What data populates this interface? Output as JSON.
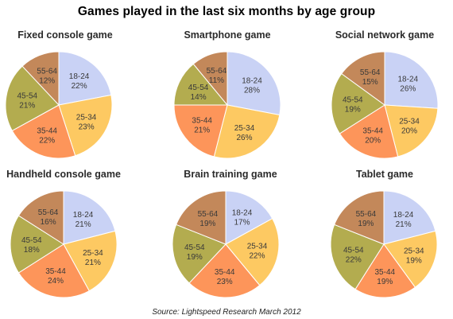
{
  "title": "Games played in the last six months by age group",
  "source": "Source: Lightspeed Research March 2012",
  "colors": {
    "18-24": "#c9d2f5",
    "25-34": "#fdc962",
    "35-44": "#fd955a",
    "45-54": "#b3ac4f",
    "55-64": "#c3885a",
    "outline": "#ffffff"
  },
  "chart_data": [
    {
      "type": "pie",
      "title": "Fixed console game",
      "categories": [
        "18-24",
        "25-34",
        "35-44",
        "45-54",
        "55-64"
      ],
      "values": [
        22,
        23,
        22,
        21,
        12
      ],
      "labels": [
        "22%",
        "23%",
        "22%",
        "21%",
        "12%"
      ]
    },
    {
      "type": "pie",
      "title": "Smartphone game",
      "categories": [
        "18-24",
        "25-34",
        "35-44",
        "45-54",
        "55-64"
      ],
      "values": [
        28,
        26,
        21,
        14,
        11
      ],
      "labels": [
        "28%",
        "26%",
        "21%",
        "14%",
        "11%"
      ]
    },
    {
      "type": "pie",
      "title": "Social network game",
      "categories": [
        "18-24",
        "25-34",
        "35-44",
        "45-54",
        "55-64"
      ],
      "values": [
        26,
        20,
        20,
        19,
        15
      ],
      "labels": [
        "26%",
        "20%",
        "20%",
        "19%",
        "15%"
      ]
    },
    {
      "type": "pie",
      "title": "Handheld console game",
      "categories": [
        "18-24",
        "25-34",
        "35-44",
        "45-54",
        "55-64"
      ],
      "values": [
        21,
        21,
        24,
        18,
        16
      ],
      "labels": [
        "21%",
        "21%",
        "24%",
        "18%",
        "16%"
      ]
    },
    {
      "type": "pie",
      "title": "Brain training game",
      "categories": [
        "18-24",
        "25-34",
        "35-44",
        "45-54",
        "55-64"
      ],
      "values": [
        17,
        22,
        23,
        19,
        19
      ],
      "labels": [
        "17%",
        "22%",
        "23%",
        "19%",
        "19%"
      ]
    },
    {
      "type": "pie",
      "title": "Tablet game",
      "categories": [
        "18-24",
        "25-34",
        "35-44",
        "45-54",
        "55-64"
      ],
      "values": [
        21,
        19,
        19,
        22,
        19
      ],
      "labels": [
        "21%",
        "19%",
        "19%",
        "22%",
        "19%"
      ]
    }
  ]
}
